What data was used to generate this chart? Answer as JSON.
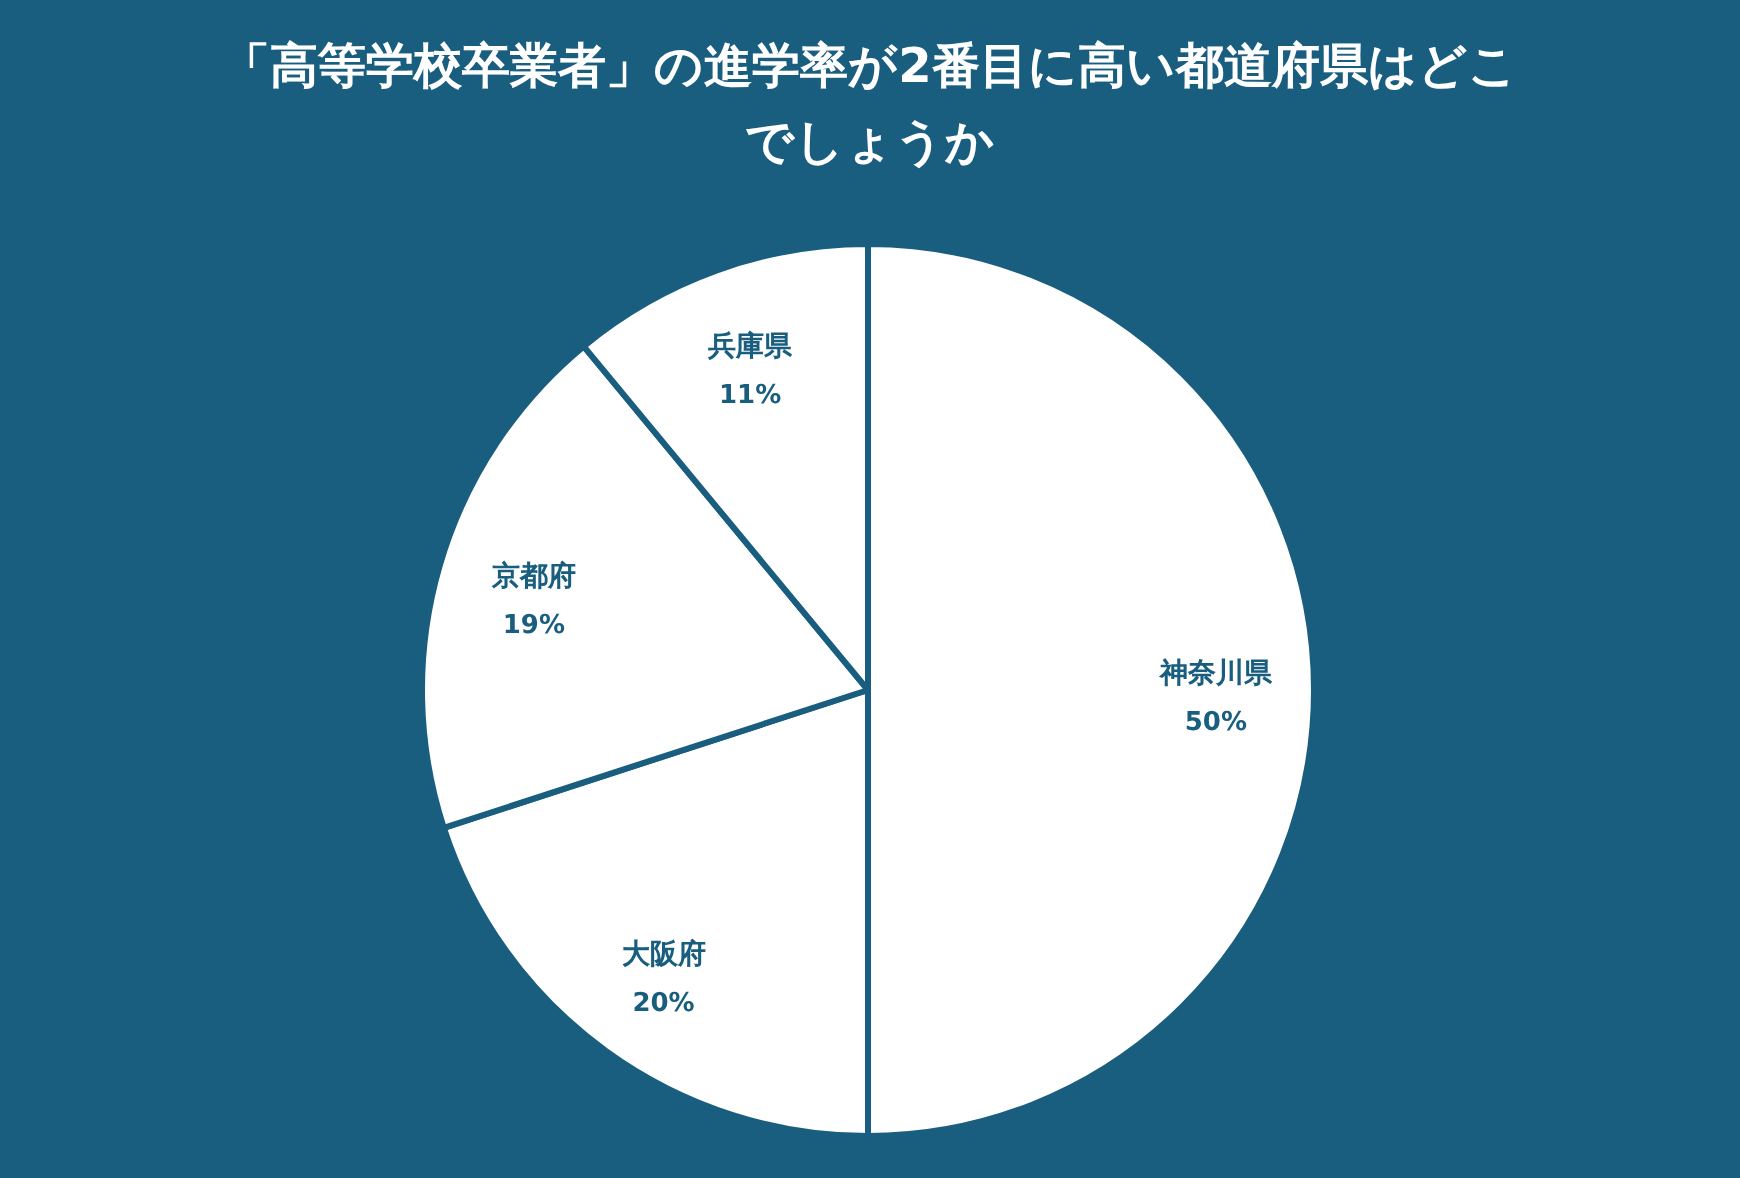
{
  "chart_data": {
    "type": "pie",
    "title": "「高等学校卒業者」の進学率が2番目に高い都道府県はどこでしょうか",
    "categories": [
      "神奈川県",
      "大阪府",
      "京都府",
      "兵庫県"
    ],
    "values": [
      50,
      20,
      19,
      11
    ],
    "value_labels": [
      "50%",
      "20%",
      "19%",
      "11%"
    ],
    "colors": [
      "#ffffff",
      "#ffffff",
      "#ffffff",
      "#ffffff"
    ]
  }
}
